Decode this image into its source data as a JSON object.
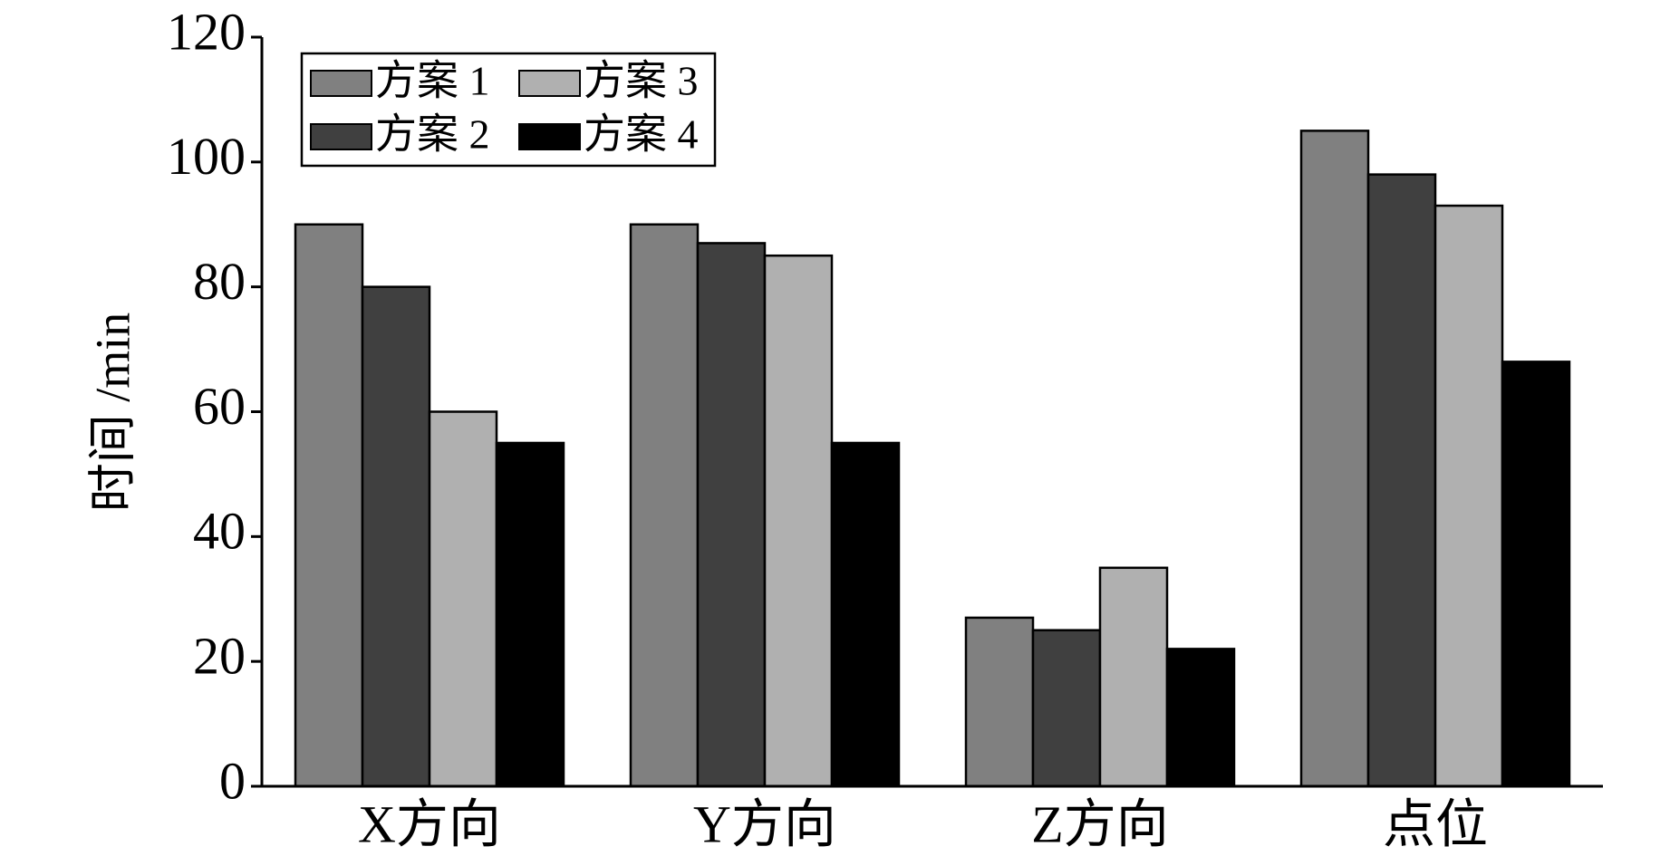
{
  "chart_data": {
    "type": "bar",
    "y_label": "时间 /min",
    "categories": [
      "X方向",
      "Y方向",
      "Z方向",
      "点位"
    ],
    "series": [
      {
        "name": "方案 1",
        "color": "#808080",
        "values": [
          90,
          90,
          27,
          105
        ]
      },
      {
        "name": "方案 2",
        "color": "#404040",
        "values": [
          80,
          87,
          25,
          98
        ]
      },
      {
        "name": "方案 3",
        "color": "#b0b0b0",
        "values": [
          60,
          85,
          35,
          93
        ]
      },
      {
        "name": "方案 4",
        "color": "#000000",
        "values": [
          55,
          55,
          22,
          68
        ]
      }
    ],
    "ylim": [
      0,
      120
    ],
    "yticks": [
      0,
      20,
      40,
      60,
      80,
      100,
      120
    ],
    "grid": false,
    "legend": "upper left"
  }
}
